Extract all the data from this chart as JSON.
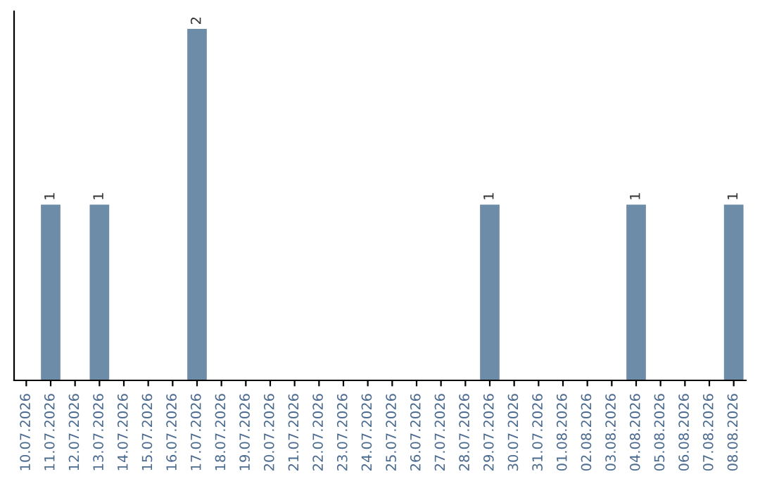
{
  "chart_data": {
    "type": "bar",
    "categories": [
      "10.07.2026",
      "11.07.2026",
      "12.07.2026",
      "13.07.2026",
      "14.07.2026",
      "15.07.2026",
      "16.07.2026",
      "17.07.2026",
      "18.07.2026",
      "19.07.2026",
      "20.07.2026",
      "21.07.2026",
      "22.07.2026",
      "23.07.2026",
      "24.07.2026",
      "25.07.2026",
      "26.07.2026",
      "27.07.2026",
      "28.07.2026",
      "29.07.2026",
      "30.07.2026",
      "31.07.2026",
      "01.08.2026",
      "02.08.2026",
      "03.08.2026",
      "04.08.2026",
      "05.08.2026",
      "06.08.2026",
      "07.08.2026",
      "08.08.2026"
    ],
    "values": [
      0,
      1,
      0,
      1,
      0,
      0,
      0,
      2,
      0,
      0,
      0,
      0,
      0,
      0,
      0,
      0,
      0,
      0,
      0,
      1,
      0,
      0,
      0,
      0,
      0,
      1,
      0,
      0,
      0,
      1
    ],
    "value_labels": [
      null,
      "1",
      null,
      "1",
      null,
      null,
      null,
      "2",
      null,
      null,
      null,
      null,
      null,
      null,
      null,
      null,
      null,
      null,
      null,
      "1",
      null,
      null,
      null,
      null,
      null,
      "1",
      null,
      null,
      null,
      "1"
    ],
    "color": "#6d8ca8",
    "ylim": [
      0,
      2.1
    ],
    "tick_labels": "x",
    "grid": false,
    "legend": false
  }
}
